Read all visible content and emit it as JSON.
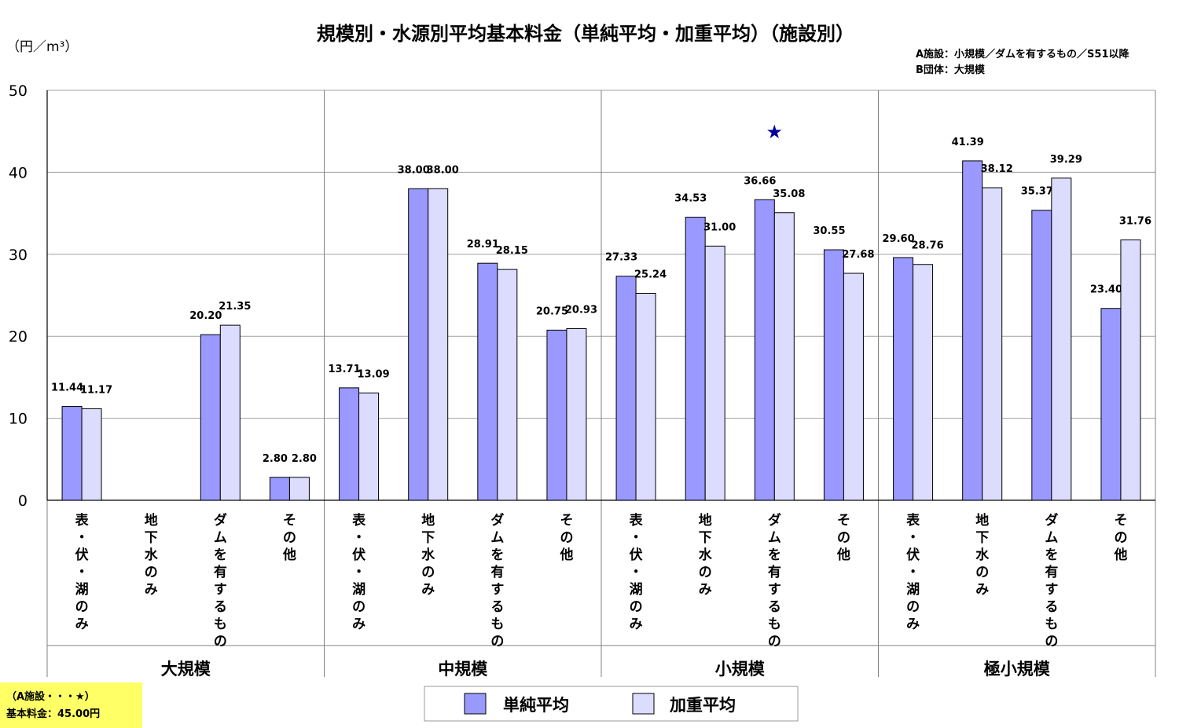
{
  "chart_data": {
    "type": "bar",
    "title": "規模別・水源別平均基本料金（単純平均・加重平均）（施設別）",
    "ylabel": "（円／m³）",
    "ylim": [
      0,
      50
    ],
    "yticks": [
      "0",
      "10",
      "20",
      "30",
      "40",
      "50"
    ],
    "grid": true,
    "legend_position": "bottom-center",
    "notes": [
      "A施設：小規模／ダムを有するもの／S51以降",
      "B団体：大規模"
    ],
    "groups": [
      "大規模",
      "中規模",
      "小規模",
      "極小規模"
    ],
    "categories": [
      "表・伏・湖のみ",
      "地下水のみ",
      "ダムを有するもの",
      "その他"
    ],
    "series": [
      {
        "name": "単純平均",
        "color": "#9999ff",
        "values": [
          [
            11.44,
            null,
            20.2,
            2.8
          ],
          [
            13.71,
            38.0,
            28.91,
            20.75
          ],
          [
            27.33,
            34.53,
            36.66,
            30.55
          ],
          [
            29.6,
            41.39,
            35.37,
            23.4
          ]
        ],
        "labels": [
          [
            "11.44",
            "",
            "20.20",
            "2.80"
          ],
          [
            "13.71",
            "38.00",
            "28.91",
            "20.75"
          ],
          [
            "27.33",
            "34.53",
            "36.66",
            "30.55"
          ],
          [
            "29.60",
            "41.39",
            "35.37",
            "23.40"
          ]
        ]
      },
      {
        "name": "加重平均",
        "color": "#dcdcff",
        "values": [
          [
            11.17,
            null,
            21.35,
            2.8
          ],
          [
            13.09,
            38.0,
            28.15,
            20.93
          ],
          [
            25.24,
            31.0,
            35.08,
            27.68
          ],
          [
            28.76,
            38.12,
            39.29,
            31.76
          ]
        ],
        "labels": [
          [
            "11.17",
            "",
            "21.35",
            "2.80"
          ],
          [
            "13.09",
            "38.00",
            "28.15",
            "20.93"
          ],
          [
            "25.24",
            "31.00",
            "35.08",
            "27.68"
          ],
          [
            "28.76",
            "38.12",
            "39.29",
            "31.76"
          ]
        ]
      }
    ],
    "marker": {
      "symbol": "★",
      "color": "#000099",
      "group": "小規模",
      "category": "ダムを有するもの",
      "value": 45.0
    },
    "marker_box": {
      "line1": "（A施設・・・★）",
      "line2": "基本料金：45.00円"
    }
  }
}
